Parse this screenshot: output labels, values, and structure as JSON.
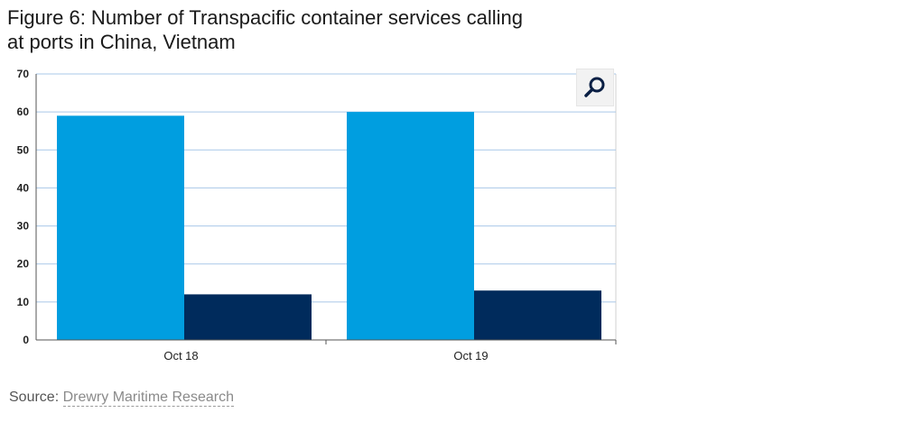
{
  "chart_data": {
    "type": "bar",
    "title_line1": "Figure 6: Number of Transpacific container services calling",
    "title_line2": "at ports in China, Vietnam",
    "categories": [
      "Oct 18",
      "Oct 19"
    ],
    "series": [
      {
        "values": [
          59,
          60
        ],
        "color": "#009ee0"
      },
      {
        "values": [
          12,
          13
        ],
        "color": "#002b5c"
      }
    ],
    "ylim": [
      0,
      70
    ],
    "yticks": [
      0,
      10,
      20,
      30,
      40,
      50,
      60,
      70
    ],
    "grid": true,
    "legend": "none"
  },
  "source": {
    "label": "Source: ",
    "name": "Drewry Maritime Research"
  },
  "toolbar": {
    "zoom_icon": "magnifier-icon"
  },
  "colors": {
    "grid": "#a9c8e8",
    "plot_border": "#d0d0d0",
    "axis": "#555555"
  }
}
